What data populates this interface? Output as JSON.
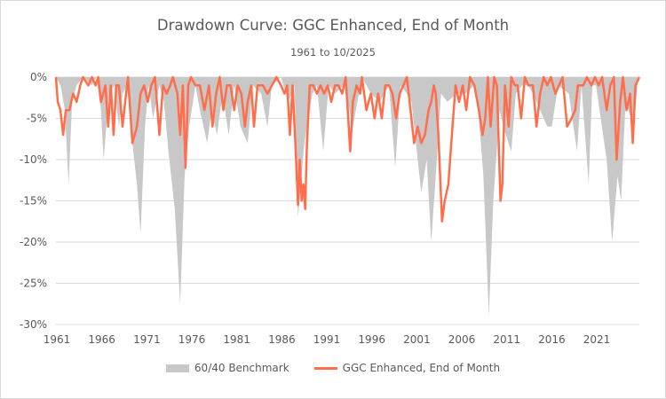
{
  "chart_data": {
    "type": "area",
    "title": "Drawdown Curve: GGC Enhanced, End of Month",
    "subtitle": "1961 to 10/2025",
    "xlabel": "",
    "ylabel": "",
    "xlim": [
      1961,
      2025.83
    ],
    "ylim": [
      -30,
      0
    ],
    "grid": true,
    "legend_position": "bottom",
    "x_ticks": [
      "1961",
      "1966",
      "1971",
      "1976",
      "1981",
      "1986",
      "1991",
      "1996",
      "2001",
      "2006",
      "2011",
      "2016",
      "2021"
    ],
    "y_ticks": [
      "0%",
      "-5%",
      "-10%",
      "-15%",
      "-20%",
      "-25%",
      "-30%"
    ],
    "y_tick_values": [
      0,
      -5,
      -10,
      -15,
      -20,
      -25,
      -30
    ],
    "series": [
      {
        "name": "60/40 Benchmark",
        "kind": "area",
        "color": "#c8c8c8",
        "points": [
          [
            1961,
            0
          ],
          [
            1961.5,
            -1
          ],
          [
            1962,
            -4
          ],
          [
            1962.4,
            -13
          ],
          [
            1962.8,
            -3
          ],
          [
            1963.3,
            -1
          ],
          [
            1964,
            0
          ],
          [
            1965,
            -1
          ],
          [
            1965.5,
            0
          ],
          [
            1966,
            -4
          ],
          [
            1966.3,
            -10
          ],
          [
            1966.9,
            -2
          ],
          [
            1967.5,
            -1
          ],
          [
            1968,
            -6
          ],
          [
            1968.4,
            -2
          ],
          [
            1968.9,
            -1
          ],
          [
            1969.4,
            -7
          ],
          [
            1970,
            -13
          ],
          [
            1970.4,
            -19
          ],
          [
            1970.9,
            -6
          ],
          [
            1971.3,
            -1
          ],
          [
            1971.8,
            -5
          ],
          [
            1972.5,
            -1
          ],
          [
            1973,
            -3
          ],
          [
            1973.5,
            -9
          ],
          [
            1974.2,
            -16
          ],
          [
            1974.8,
            -27.5
          ],
          [
            1975.3,
            -12
          ],
          [
            1975.8,
            -6
          ],
          [
            1976.5,
            -1
          ],
          [
            1977,
            -4
          ],
          [
            1977.8,
            -8
          ],
          [
            1978.3,
            -4
          ],
          [
            1978.9,
            -7
          ],
          [
            1979.5,
            -2
          ],
          [
            1980.2,
            -7
          ],
          [
            1980.8,
            -1
          ],
          [
            1981.5,
            -6
          ],
          [
            1982.3,
            -8
          ],
          [
            1982.9,
            -1
          ],
          [
            1983.8,
            -2
          ],
          [
            1984.5,
            -6
          ],
          [
            1985,
            -1
          ],
          [
            1986,
            0
          ],
          [
            1986.8,
            -3
          ],
          [
            1987.5,
            -1
          ],
          [
            1987.9,
            -17
          ],
          [
            1988.6,
            -8
          ],
          [
            1989.5,
            -2
          ],
          [
            1990,
            -1
          ],
          [
            1990.7,
            -9
          ],
          [
            1991.3,
            -1
          ],
          [
            1992,
            -2
          ],
          [
            1993,
            -1
          ],
          [
            1994,
            -6
          ],
          [
            1995,
            0
          ],
          [
            1996,
            -2
          ],
          [
            1997,
            -3
          ],
          [
            1998,
            -1
          ],
          [
            1998.7,
            -11
          ],
          [
            1999.3,
            -1
          ],
          [
            2000,
            -2
          ],
          [
            2000.5,
            -3
          ],
          [
            2001,
            -8
          ],
          [
            2001.6,
            -14
          ],
          [
            2002.2,
            -10
          ],
          [
            2002.7,
            -20
          ],
          [
            2003.2,
            -12
          ],
          [
            2003.8,
            -2
          ],
          [
            2004.5,
            -3
          ],
          [
            2005.5,
            -2
          ],
          [
            2006.5,
            -2
          ],
          [
            2007.5,
            -1
          ],
          [
            2008,
            -5
          ],
          [
            2008.5,
            -12
          ],
          [
            2009.1,
            -29
          ],
          [
            2009.6,
            -15
          ],
          [
            2010.3,
            -4
          ],
          [
            2010.7,
            -6
          ],
          [
            2011.6,
            -9
          ],
          [
            2012.1,
            -2
          ],
          [
            2012.8,
            -1
          ],
          [
            2013.5,
            -1
          ],
          [
            2014,
            -2
          ],
          [
            2015.6,
            -6
          ],
          [
            2016.1,
            -6
          ],
          [
            2016.8,
            -1
          ],
          [
            2018,
            -2
          ],
          [
            2018.9,
            -9
          ],
          [
            2019.4,
            -1
          ],
          [
            2020.2,
            -13
          ],
          [
            2020.6,
            -1
          ],
          [
            2021,
            -1
          ],
          [
            2022.2,
            -10
          ],
          [
            2022.8,
            -20
          ],
          [
            2023.4,
            -12
          ],
          [
            2023.8,
            -15
          ],
          [
            2024.3,
            -3
          ],
          [
            2025.2,
            -6
          ],
          [
            2025.6,
            -1
          ],
          [
            2025.83,
            0
          ]
        ]
      },
      {
        "name": "GGC Enhanced, End of Month",
        "kind": "line",
        "color": "#ff6d4a",
        "points": [
          [
            1961,
            0
          ],
          [
            1961.2,
            -3
          ],
          [
            1961.5,
            -4
          ],
          [
            1961.8,
            -7
          ],
          [
            1962.1,
            -4
          ],
          [
            1962.5,
            -4
          ],
          [
            1962.9,
            -2
          ],
          [
            1963.3,
            -3
          ],
          [
            1963.7,
            -1
          ],
          [
            1964,
            0
          ],
          [
            1964.6,
            -1
          ],
          [
            1965,
            0
          ],
          [
            1965.4,
            -1
          ],
          [
            1965.7,
            0
          ],
          [
            1966,
            -3
          ],
          [
            1966.5,
            -1
          ],
          [
            1966.8,
            -6
          ],
          [
            1967.1,
            -1
          ],
          [
            1967.4,
            -7
          ],
          [
            1967.7,
            -1
          ],
          [
            1968,
            -1
          ],
          [
            1968.4,
            -6
          ],
          [
            1968.7,
            -3
          ],
          [
            1969,
            0
          ],
          [
            1969.5,
            -8
          ],
          [
            1970,
            -6
          ],
          [
            1970.4,
            -2
          ],
          [
            1970.8,
            -1
          ],
          [
            1971.2,
            -3
          ],
          [
            1971.6,
            -1
          ],
          [
            1972,
            0
          ],
          [
            1972.5,
            -7
          ],
          [
            1972.9,
            -1
          ],
          [
            1973.3,
            -2
          ],
          [
            1973.7,
            -1
          ],
          [
            1974,
            0
          ],
          [
            1974.5,
            -2
          ],
          [
            1974.8,
            -7
          ],
          [
            1975.1,
            -1
          ],
          [
            1975.4,
            -11
          ],
          [
            1975.7,
            -1
          ],
          [
            1976,
            0
          ],
          [
            1976.5,
            -1
          ],
          [
            1977,
            -1
          ],
          [
            1977.5,
            -4
          ],
          [
            1978,
            -1
          ],
          [
            1978.4,
            -6
          ],
          [
            1978.8,
            -2
          ],
          [
            1979.2,
            0
          ],
          [
            1979.6,
            -4
          ],
          [
            1980,
            -1
          ],
          [
            1980.4,
            -1
          ],
          [
            1980.8,
            -4
          ],
          [
            1981.2,
            -1
          ],
          [
            1981.6,
            -2
          ],
          [
            1982,
            -6
          ],
          [
            1982.3,
            -3
          ],
          [
            1982.7,
            -1
          ],
          [
            1983,
            -6
          ],
          [
            1983.4,
            -1
          ],
          [
            1984,
            -1
          ],
          [
            1984.5,
            -2
          ],
          [
            1985,
            -1
          ],
          [
            1985.5,
            0
          ],
          [
            1986,
            -1
          ],
          [
            1986.4,
            -2
          ],
          [
            1986.7,
            -1
          ],
          [
            1987,
            -7
          ],
          [
            1987.3,
            -1
          ],
          [
            1987.6,
            -8
          ],
          [
            1987.9,
            -15.5
          ],
          [
            1988.1,
            -10
          ],
          [
            1988.3,
            -15
          ],
          [
            1988.5,
            -13
          ],
          [
            1988.7,
            -16
          ],
          [
            1988.9,
            -8
          ],
          [
            1989.2,
            -1
          ],
          [
            1989.6,
            -1
          ],
          [
            1990,
            -2
          ],
          [
            1990.4,
            -1
          ],
          [
            1990.8,
            -2
          ],
          [
            1991.2,
            -1
          ],
          [
            1991.6,
            -3
          ],
          [
            1992,
            -1
          ],
          [
            1992.4,
            -1
          ],
          [
            1992.8,
            -2
          ],
          [
            1993.2,
            0
          ],
          [
            1993.7,
            -9
          ],
          [
            1994,
            -3
          ],
          [
            1994.4,
            -1
          ],
          [
            1994.8,
            -2
          ],
          [
            1995,
            0
          ],
          [
            1995.5,
            -4
          ],
          [
            1996,
            -2
          ],
          [
            1996.4,
            -5
          ],
          [
            1996.8,
            -2
          ],
          [
            1997.2,
            -5
          ],
          [
            1997.6,
            -1
          ],
          [
            1998,
            -1
          ],
          [
            1998.4,
            -2
          ],
          [
            1998.8,
            -5
          ],
          [
            1999.2,
            -2
          ],
          [
            1999.6,
            -1
          ],
          [
            2000,
            0
          ],
          [
            2000.4,
            -4
          ],
          [
            2000.8,
            -8
          ],
          [
            2001.2,
            -6
          ],
          [
            2001.6,
            -8
          ],
          [
            2002,
            -7
          ],
          [
            2002.4,
            -4
          ],
          [
            2002.7,
            -3
          ],
          [
            2003,
            -1
          ],
          [
            2003.2,
            -2
          ],
          [
            2003.5,
            -7
          ],
          [
            2003.9,
            -17.5
          ],
          [
            2004.2,
            -15
          ],
          [
            2004.6,
            -13
          ],
          [
            2005,
            -7
          ],
          [
            2005.4,
            -1
          ],
          [
            2005.8,
            -3
          ],
          [
            2006.2,
            -1
          ],
          [
            2006.6,
            -4
          ],
          [
            2007,
            0
          ],
          [
            2007.5,
            -1
          ],
          [
            2008,
            -4
          ],
          [
            2008.4,
            -7
          ],
          [
            2008.7,
            -5
          ],
          [
            2009,
            0
          ],
          [
            2009.3,
            -6
          ],
          [
            2009.7,
            0
          ],
          [
            2010,
            -1
          ],
          [
            2010.4,
            -15
          ],
          [
            2010.6,
            -13
          ],
          [
            2010.9,
            -1
          ],
          [
            2011.3,
            -6
          ],
          [
            2011.6,
            0
          ],
          [
            2012,
            -1
          ],
          [
            2012.3,
            -1
          ],
          [
            2012.7,
            -5
          ],
          [
            2013.1,
            0
          ],
          [
            2013.5,
            -1
          ],
          [
            2014,
            -1
          ],
          [
            2014.4,
            -6
          ],
          [
            2014.8,
            -2
          ],
          [
            2015.2,
            0
          ],
          [
            2015.6,
            -1
          ],
          [
            2016,
            0
          ],
          [
            2016.5,
            -2
          ],
          [
            2016.9,
            -1
          ],
          [
            2017.3,
            0
          ],
          [
            2017.8,
            -6
          ],
          [
            2018.3,
            -5
          ],
          [
            2018.7,
            -4
          ],
          [
            2019,
            -1
          ],
          [
            2019.6,
            -1
          ],
          [
            2020,
            0
          ],
          [
            2020.5,
            -1
          ],
          [
            2020.9,
            0
          ],
          [
            2021.3,
            -1
          ],
          [
            2021.7,
            0
          ],
          [
            2022.2,
            -4
          ],
          [
            2022.6,
            -1
          ],
          [
            2023,
            0
          ],
          [
            2023.3,
            -10
          ],
          [
            2023.7,
            -3
          ],
          [
            2024,
            0
          ],
          [
            2024.4,
            -4
          ],
          [
            2024.8,
            -2
          ],
          [
            2025.1,
            -8
          ],
          [
            2025.4,
            -1
          ],
          [
            2025.83,
            0
          ]
        ]
      }
    ]
  }
}
